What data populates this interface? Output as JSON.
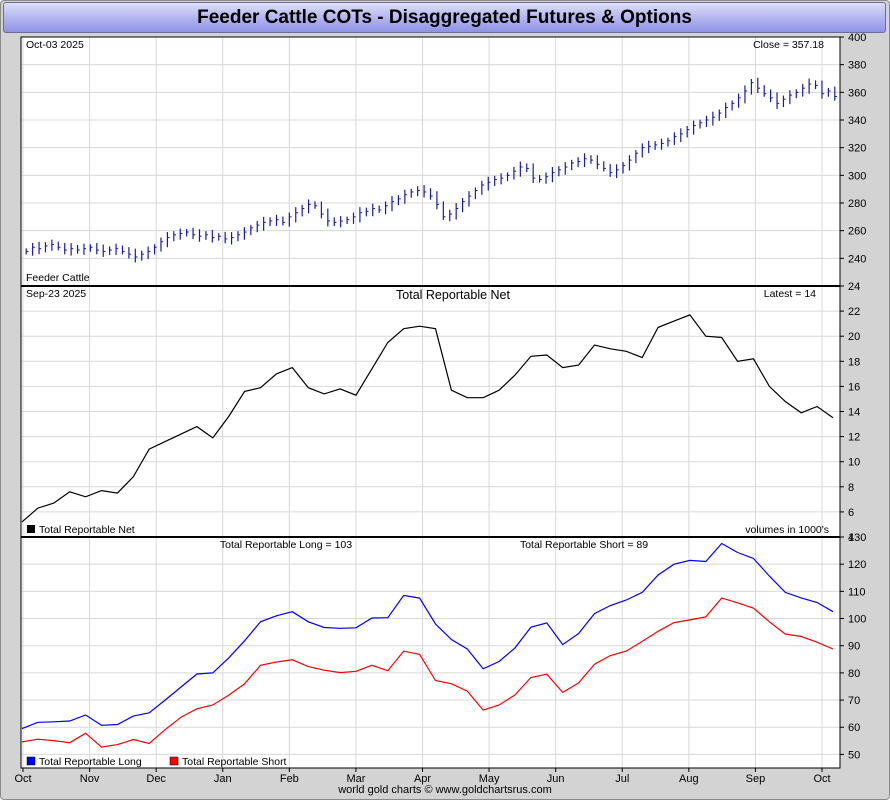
{
  "title": "Feeder Cattle COTs - Disaggregated Futures & Options",
  "footer": "world gold charts © www.goldchartsrus.com",
  "colors": {
    "price_bars": "#1a1aaa",
    "net": "#000000",
    "long": "#0000ff",
    "short": "#ff0000",
    "title_bg": "#a9acee"
  },
  "chart_data": [
    {
      "type": "bar",
      "name": "price",
      "date_label": "Oct-03  2025",
      "readout": "Close = 357.18",
      "legend": "Feeder Cattle",
      "ylim": [
        220,
        400
      ],
      "yticks": [
        240,
        260,
        280,
        300,
        320,
        340,
        360,
        380,
        400
      ],
      "x_months": [
        "Oct",
        "Nov",
        "Dec",
        "Jan",
        "Feb",
        "Mar",
        "Apr",
        "May",
        "Jun",
        "Jul",
        "Aug",
        "Sep",
        "Oct"
      ],
      "closes": [
        245,
        248,
        247,
        249,
        250,
        248,
        246,
        247,
        246,
        247,
        248,
        246,
        245,
        246,
        247,
        245,
        243,
        241,
        243,
        245,
        248,
        252,
        255,
        257,
        258,
        259,
        257,
        256,
        257,
        255,
        256,
        254,
        255,
        257,
        259,
        262,
        264,
        266,
        267,
        268,
        266,
        270,
        273,
        276,
        279,
        278,
        272,
        267,
        266,
        267,
        268,
        270,
        273,
        274,
        276,
        275,
        278,
        281,
        283,
        286,
        288,
        289,
        288,
        285,
        279,
        270,
        272,
        276,
        281,
        285,
        289,
        293,
        295,
        297,
        298,
        300,
        303,
        306,
        305,
        298,
        297,
        299,
        302,
        304,
        306,
        309,
        310,
        312,
        311,
        308,
        305,
        302,
        304,
        307,
        311,
        316,
        320,
        321,
        322,
        323,
        325,
        328,
        330,
        333,
        336,
        338,
        340,
        342,
        345,
        349,
        352,
        356,
        361,
        367,
        363,
        359,
        356,
        352,
        355,
        358,
        360,
        363,
        366,
        365,
        359,
        361,
        357
      ]
    },
    {
      "type": "line",
      "name": "Total Reportable Net",
      "title": "Total Reportable Net",
      "date_label": "Sep-23  2025",
      "readout": "Latest = 14",
      "legend": "Total Reportable Net",
      "note": "volumes in 1000's",
      "ylim": [
        4,
        24
      ],
      "yticks": [
        4,
        6,
        8,
        10,
        12,
        14,
        16,
        18,
        20,
        22,
        24
      ],
      "values": [
        5.2,
        6.3,
        6.7,
        7.6,
        7.2,
        7.7,
        7.5,
        8.8,
        11,
        11.6,
        12.2,
        12.8,
        11.9,
        13.6,
        15.6,
        15.9,
        17,
        17.5,
        15.9,
        15.4,
        15.8,
        15.3,
        17.4,
        19.5,
        20.6,
        20.8,
        20.6,
        15.7,
        15.1,
        15.1,
        15.7,
        16.9,
        18.4,
        18.5,
        17.5,
        17.7,
        19.3,
        19,
        18.8,
        18.3,
        20.7,
        21.2,
        21.7,
        20,
        19.9,
        18,
        18.2,
        16,
        14.8,
        13.9,
        14.4,
        13.5
      ]
    },
    {
      "type": "line",
      "name": "long-short",
      "readout_long": "Total Reportable Long = 103",
      "readout_short": "Total Reportable Short = 89",
      "ylim": [
        45,
        130
      ],
      "yticks": [
        50,
        60,
        70,
        80,
        90,
        100,
        110,
        120,
        130
      ],
      "series": [
        {
          "name": "Total Reportable Long",
          "values": [
            59.5,
            61.8,
            62,
            62.3,
            64.5,
            60.7,
            61,
            64.1,
            65.3,
            70,
            74.8,
            79.6,
            80,
            85.5,
            91.8,
            98.8,
            101,
            102.5,
            98.8,
            96.7,
            96.4,
            96.6,
            100.2,
            100.3,
            108.5,
            107.5,
            98,
            92.3,
            88.8,
            81.5,
            84.2,
            89.2,
            96.8,
            98.4,
            90.4,
            94.5,
            101.8,
            104.8,
            106.8,
            109.6,
            116,
            120,
            121.4,
            121,
            127.6,
            124.3,
            122.1,
            115.6,
            109.6,
            107.6,
            105.9,
            102.5
          ]
        },
        {
          "name": "Total Reportable Short",
          "values": [
            54.6,
            55.6,
            55.1,
            54.3,
            57.8,
            52.7,
            53.6,
            55.5,
            54,
            59.1,
            63.7,
            66.8,
            68.2,
            71.8,
            76,
            82.8,
            84,
            84.8,
            82.3,
            81,
            80.1,
            80.6,
            82.8,
            80.8,
            88,
            86.8,
            77.2,
            76,
            73.3,
            66.3,
            68.2,
            71.9,
            78.3,
            79.5,
            72.8,
            76.3,
            83.2,
            86.4,
            88,
            91.6,
            95.3,
            98.5,
            99.5,
            100.6,
            107.5,
            105.8,
            103.8,
            98.8,
            94.3,
            93.4,
            91.3,
            88.8
          ]
        }
      ]
    }
  ]
}
